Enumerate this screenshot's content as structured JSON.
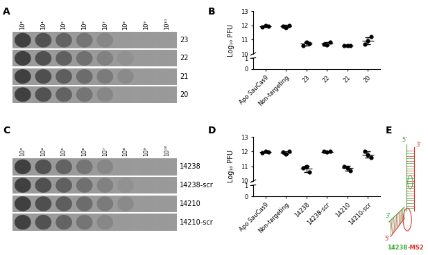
{
  "panel_labels": [
    "A",
    "B",
    "C",
    "D",
    "E"
  ],
  "plaque_panels": [
    {
      "dilutions": [
        "10³",
        "10⁴",
        "10⁵",
        "10⁶",
        "10⁷",
        "10⁸",
        "10⁹",
        "10¹⁰"
      ],
      "rows": [
        "23",
        "22",
        "21",
        "20"
      ]
    },
    {
      "dilutions": [
        "10³",
        "10⁴",
        "10⁵",
        "10⁶",
        "10⁷",
        "10⁸",
        "10⁹",
        "10¹⁰"
      ],
      "rows": [
        "14238",
        "14238-scr",
        "14210",
        "14210-scr"
      ]
    }
  ],
  "chart_data": [
    {
      "type": "scatter",
      "y_label": "Log₁₀ PFU",
      "categories": [
        "Apo SauCas9",
        "Non-targeting",
        "23",
        "22",
        "21",
        "20"
      ],
      "replicates": [
        [
          11.9,
          12.0,
          11.95
        ],
        [
          11.95,
          11.85,
          12.0
        ],
        [
          10.6,
          10.8,
          10.75
        ],
        [
          10.7,
          10.65,
          10.8
        ],
        [
          10.6,
          10.6,
          10.6
        ],
        [
          10.7,
          10.9,
          11.2
        ]
      ],
      "means": [
        11.95,
        11.93,
        10.72,
        10.72,
        10.6,
        10.93
      ],
      "errors": [
        0.05,
        0.08,
        0.12,
        0.08,
        0.0,
        0.25
      ],
      "ylim": [
        0,
        13
      ],
      "y_break": [
        1,
        10
      ],
      "yticks": [
        0,
        1,
        10,
        11,
        12,
        13
      ],
      "color": "#000000",
      "marker": "circle"
    },
    {
      "type": "scatter",
      "y_label": "Log₁₀ PFU",
      "categories": [
        "Apo SauCas9",
        "Non-targeting",
        "14238",
        "14238-scr",
        "14210",
        "14210-scr"
      ],
      "replicates": [
        [
          11.9,
          12.0,
          11.95
        ],
        [
          11.95,
          11.85,
          12.0
        ],
        [
          10.9,
          11.0,
          10.6
        ],
        [
          12.0,
          11.95,
          12.0
        ],
        [
          11.0,
          10.9,
          10.7
        ],
        [
          12.0,
          11.8,
          11.6
        ]
      ],
      "means": [
        11.95,
        11.93,
        10.83,
        11.98,
        10.87,
        11.8
      ],
      "errors": [
        0.05,
        0.08,
        0.2,
        0.03,
        0.15,
        0.2
      ],
      "ylim": [
        0,
        13
      ],
      "y_break": [
        1,
        10
      ],
      "yticks": [
        0,
        1,
        10,
        11,
        12,
        13
      ],
      "color": "#000000",
      "marker": "circle"
    }
  ],
  "structure": {
    "label_parts": [
      {
        "text": "14238",
        "color": "#3aa935"
      },
      {
        "text": "-MS2",
        "color": "#e0312f"
      }
    ],
    "strand_ends": [
      {
        "text": "5'",
        "color": "#3aa935"
      },
      {
        "text": "3'",
        "color": "#e0312f"
      },
      {
        "text": "3'",
        "color": "#3aa935"
      },
      {
        "text": "5'",
        "color": "#e0312f"
      }
    ]
  }
}
